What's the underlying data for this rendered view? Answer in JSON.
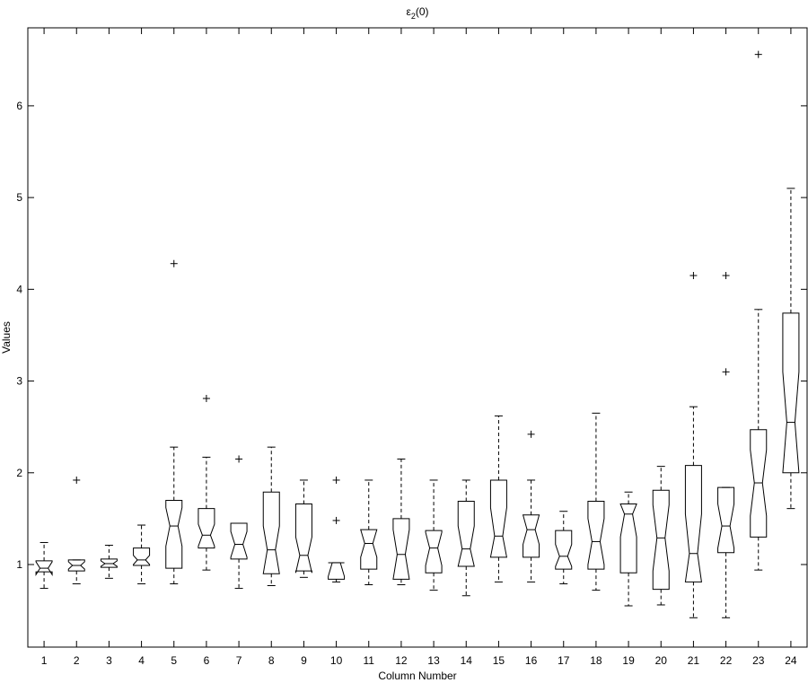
{
  "chart_data": {
    "type": "boxplot",
    "title_main": "ε",
    "title_sub": "2",
    "title_rest": "(0)",
    "xlabel": "Column Number",
    "ylabel": "Values",
    "ylim": [
      0.1,
      6.85
    ],
    "yticks": [
      1,
      2,
      3,
      4,
      5,
      6
    ],
    "xlim": [
      0.5,
      24.5
    ],
    "categories": [
      "1",
      "2",
      "3",
      "4",
      "5",
      "6",
      "7",
      "8",
      "9",
      "10",
      "11",
      "12",
      "13",
      "14",
      "15",
      "16",
      "17",
      "18",
      "19",
      "20",
      "21",
      "22",
      "23",
      "24"
    ],
    "boxes": [
      {
        "q1": 0.92,
        "median": 0.96,
        "q3": 1.04,
        "notch_lo": 0.89,
        "notch_hi": 1.03,
        "wlo": 0.74,
        "whi": 1.24,
        "outliers": []
      },
      {
        "q1": 0.93,
        "median": 0.99,
        "q3": 1.05,
        "notch_lo": 0.95,
        "notch_hi": 1.03,
        "wlo": 0.79,
        "whi": 1.05,
        "outliers": [
          1.92
        ]
      },
      {
        "q1": 0.97,
        "median": 1.01,
        "q3": 1.06,
        "notch_lo": 0.98,
        "notch_hi": 1.04,
        "wlo": 0.85,
        "whi": 1.21,
        "outliers": []
      },
      {
        "q1": 0.99,
        "median": 1.05,
        "q3": 1.18,
        "notch_lo": 1.0,
        "notch_hi": 1.1,
        "wlo": 0.79,
        "whi": 1.43,
        "outliers": []
      },
      {
        "q1": 0.96,
        "median": 1.42,
        "q3": 1.7,
        "notch_lo": 1.2,
        "notch_hi": 1.62,
        "wlo": 0.79,
        "whi": 2.28,
        "outliers": [
          4.28
        ]
      },
      {
        "q1": 1.18,
        "median": 1.32,
        "q3": 1.61,
        "notch_lo": 1.2,
        "notch_hi": 1.44,
        "wlo": 0.94,
        "whi": 2.17,
        "outliers": [
          2.81
        ]
      },
      {
        "q1": 1.06,
        "median": 1.22,
        "q3": 1.45,
        "notch_lo": 1.08,
        "notch_hi": 1.36,
        "wlo": 0.74,
        "whi": 1.45,
        "outliers": [
          2.15
        ]
      },
      {
        "q1": 0.9,
        "median": 1.16,
        "q3": 1.79,
        "notch_lo": 0.9,
        "notch_hi": 1.42,
        "wlo": 0.77,
        "whi": 2.28,
        "outliers": []
      },
      {
        "q1": 0.93,
        "median": 1.1,
        "q3": 1.66,
        "notch_lo": 0.91,
        "notch_hi": 1.3,
        "wlo": 0.86,
        "whi": 1.92,
        "outliers": []
      },
      {
        "q1": 0.84,
        "median": 1.02,
        "q3": 1.02,
        "notch_lo": 0.87,
        "notch_hi": 1.02,
        "wlo": 0.81,
        "whi": 1.02,
        "outliers": [
          1.92,
          1.48
        ]
      },
      {
        "q1": 0.95,
        "median": 1.23,
        "q3": 1.38,
        "notch_lo": 1.08,
        "notch_hi": 1.38,
        "wlo": 0.78,
        "whi": 1.92,
        "outliers": []
      },
      {
        "q1": 0.84,
        "median": 1.11,
        "q3": 1.5,
        "notch_lo": 0.84,
        "notch_hi": 1.38,
        "wlo": 0.78,
        "whi": 2.15,
        "outliers": []
      },
      {
        "q1": 0.91,
        "median": 1.18,
        "q3": 1.37,
        "notch_lo": 0.99,
        "notch_hi": 1.35,
        "wlo": 0.72,
        "whi": 1.92,
        "outliers": []
      },
      {
        "q1": 0.98,
        "median": 1.17,
        "q3": 1.69,
        "notch_lo": 0.98,
        "notch_hi": 1.42,
        "wlo": 0.66,
        "whi": 1.92,
        "outliers": []
      },
      {
        "q1": 1.08,
        "median": 1.31,
        "q3": 1.92,
        "notch_lo": 1.08,
        "notch_hi": 1.62,
        "wlo": 0.81,
        "whi": 2.62,
        "outliers": []
      },
      {
        "q1": 1.08,
        "median": 1.38,
        "q3": 1.54,
        "notch_lo": 1.22,
        "notch_hi": 1.54,
        "wlo": 0.81,
        "whi": 1.92,
        "outliers": [
          2.42
        ]
      },
      {
        "q1": 0.95,
        "median": 1.09,
        "q3": 1.37,
        "notch_lo": 0.98,
        "notch_hi": 1.22,
        "wlo": 0.79,
        "whi": 1.58,
        "outliers": []
      },
      {
        "q1": 0.95,
        "median": 1.25,
        "q3": 1.69,
        "notch_lo": 1.0,
        "notch_hi": 1.5,
        "wlo": 0.72,
        "whi": 2.65,
        "outliers": []
      },
      {
        "q1": 0.91,
        "median": 1.55,
        "q3": 1.66,
        "notch_lo": 1.3,
        "notch_hi": 1.66,
        "wlo": 0.55,
        "whi": 1.79,
        "outliers": []
      },
      {
        "q1": 0.73,
        "median": 1.29,
        "q3": 1.81,
        "notch_lo": 0.93,
        "notch_hi": 1.65,
        "wlo": 0.56,
        "whi": 2.07,
        "outliers": []
      },
      {
        "q1": 0.81,
        "median": 1.12,
        "q3": 2.08,
        "notch_lo": 0.81,
        "notch_hi": 1.55,
        "wlo": 0.42,
        "whi": 2.72,
        "outliers": [
          4.15
        ]
      },
      {
        "q1": 1.13,
        "median": 1.42,
        "q3": 1.84,
        "notch_lo": 1.18,
        "notch_hi": 1.66,
        "wlo": 0.42,
        "whi": 1.84,
        "outliers": [
          4.15,
          3.1
        ]
      },
      {
        "q1": 1.3,
        "median": 1.89,
        "q3": 2.47,
        "notch_lo": 1.53,
        "notch_hi": 2.25,
        "wlo": 0.94,
        "whi": 3.78,
        "outliers": [
          6.56
        ]
      },
      {
        "q1": 2.0,
        "median": 2.55,
        "q3": 3.74,
        "notch_lo": 2.0,
        "notch_hi": 3.1,
        "wlo": 1.61,
        "whi": 5.1,
        "outliers": []
      }
    ]
  }
}
